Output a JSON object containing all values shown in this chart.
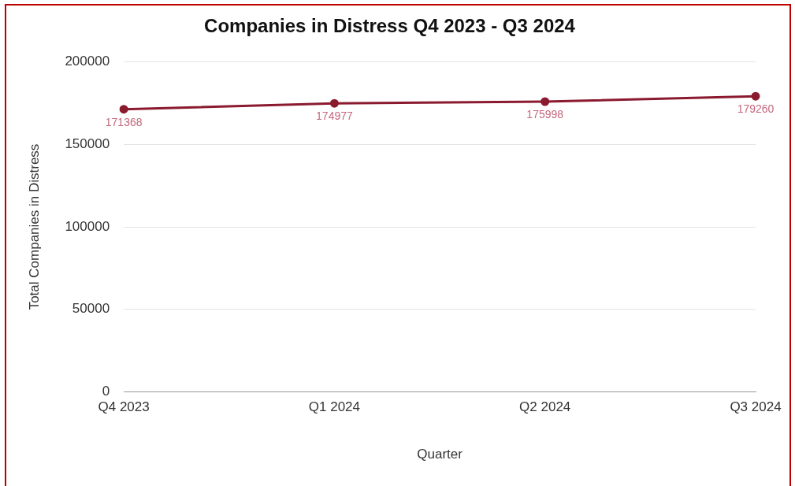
{
  "chart_data": {
    "type": "line",
    "title": "Companies in Distress Q4 2023 - Q3 2024",
    "xlabel": "Quarter",
    "ylabel": "Total Companies in Distress",
    "categories": [
      "Q4 2023",
      "Q1 2024",
      "Q2 2024",
      "Q3 2024"
    ],
    "series": [
      {
        "color": "#8b1a2f",
        "values": [
          171368,
          174977,
          175998,
          179260
        ]
      }
    ],
    "ylim": [
      0,
      200000
    ],
    "yticks": [
      0,
      50000,
      100000,
      150000,
      200000
    ],
    "grid": "y",
    "legend": false,
    "marker": "circle",
    "line_style": "solid",
    "data_labels": true
  }
}
